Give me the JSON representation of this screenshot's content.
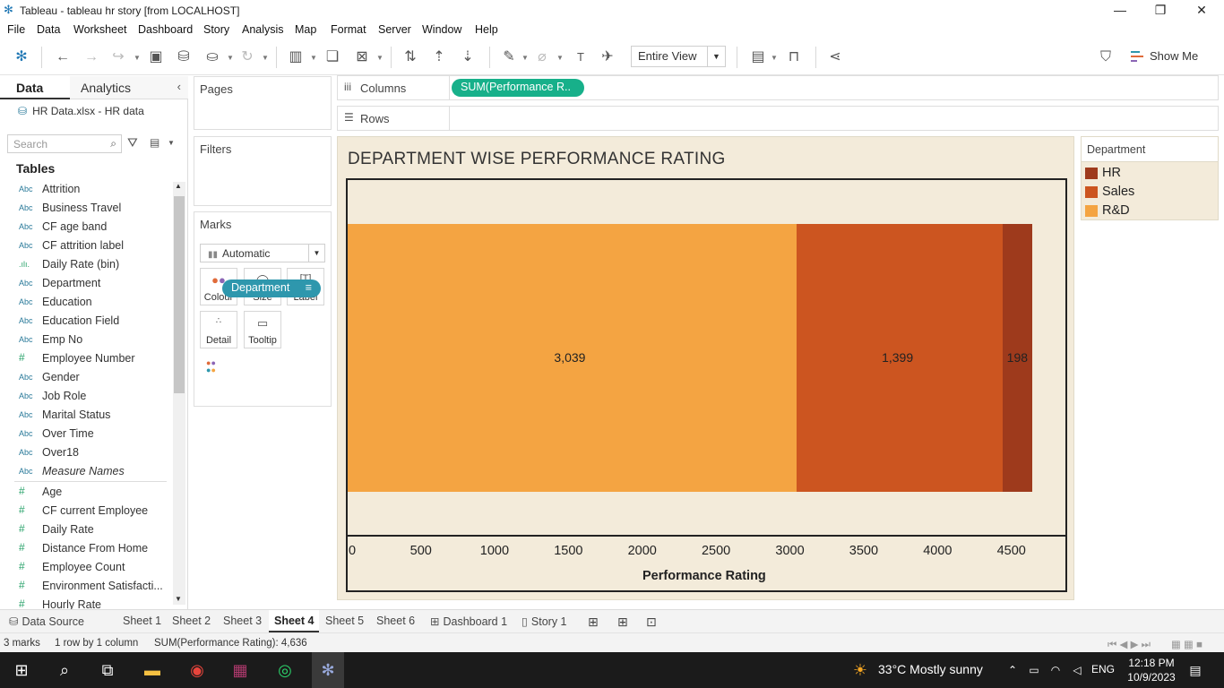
{
  "window": {
    "title": "Tableau - tableau hr story [from LOCALHOST]"
  },
  "menu": [
    "File",
    "Data",
    "Worksheet",
    "Dashboard",
    "Story",
    "Analysis",
    "Map",
    "Format",
    "Server",
    "Window",
    "Help"
  ],
  "toolbar": {
    "fit": "Entire View",
    "show_me": "Show Me"
  },
  "left_panel": {
    "tab_data": "Data",
    "tab_analytics": "Analytics",
    "datasource": "HR Data.xlsx - HR data",
    "search_placeholder": "Search",
    "tables_heading": "Tables",
    "fields": [
      {
        "type": "Abc",
        "name": "Attrition"
      },
      {
        "type": "Abc",
        "name": "Business Travel"
      },
      {
        "type": "Abc",
        "name": "CF age band"
      },
      {
        "type": "Abc",
        "name": "CF attrition label"
      },
      {
        "type": ".ılı.",
        "name": "Daily Rate (bin)"
      },
      {
        "type": "Abc",
        "name": "Department"
      },
      {
        "type": "Abc",
        "name": "Education"
      },
      {
        "type": "Abc",
        "name": "Education Field"
      },
      {
        "type": "Abc",
        "name": "Emp No"
      },
      {
        "type": "#",
        "name": "Employee Number"
      },
      {
        "type": "Abc",
        "name": "Gender"
      },
      {
        "type": "Abc",
        "name": "Job Role"
      },
      {
        "type": "Abc",
        "name": "Marital Status"
      },
      {
        "type": "Abc",
        "name": "Over Time"
      },
      {
        "type": "Abc",
        "name": "Over18"
      },
      {
        "type": "Abc",
        "name": "Measure Names"
      }
    ],
    "measures": [
      {
        "type": "#",
        "name": "Age"
      },
      {
        "type": "#",
        "name": "CF current Employee"
      },
      {
        "type": "#",
        "name": "Daily Rate"
      },
      {
        "type": "#",
        "name": "Distance From Home"
      },
      {
        "type": "#",
        "name": "Employee Count"
      },
      {
        "type": "#",
        "name": "Environment Satisfacti..."
      },
      {
        "type": "#",
        "name": "Hourly Rate"
      }
    ]
  },
  "cards": {
    "pages": "Pages",
    "filters": "Filters",
    "marks": "Marks",
    "mark_type": "Automatic",
    "buttons": [
      "Colour",
      "Size",
      "Label",
      "Detail",
      "Tooltip"
    ],
    "color_pill": "Department"
  },
  "shelves": {
    "columns_label": "Columns",
    "columns_pill": "SUM(Performance R..",
    "rows_label": "Rows"
  },
  "chart_data": {
    "type": "bar",
    "stacked": true,
    "orientation": "horizontal",
    "title": "DEPARTMENT WISE PERFORMANCE RATING",
    "xlabel": "Performance Rating",
    "xlim": [
      0,
      4800
    ],
    "xticks": [
      0,
      500,
      1000,
      1500,
      2000,
      2500,
      3000,
      3500,
      4000,
      4500
    ],
    "series": [
      {
        "name": "R&D",
        "value": 3039,
        "label": "3,039",
        "color": "#f4a442"
      },
      {
        "name": "Sales",
        "value": 1399,
        "label": "1,399",
        "color": "#cc5520"
      },
      {
        "name": "HR",
        "value": 198,
        "label": "198",
        "color": "#9e3a1c"
      }
    ]
  },
  "legend": {
    "title": "Department",
    "items": [
      {
        "name": "HR",
        "color": "#9e3a1c"
      },
      {
        "name": "Sales",
        "color": "#cc5520"
      },
      {
        "name": "R&D",
        "color": "#f4a442"
      }
    ]
  },
  "sheet_tabs": {
    "datasource": "Data Source",
    "sheets": [
      "Sheet 1",
      "Sheet 2",
      "Sheet 3",
      "Sheet 4",
      "Sheet 5",
      "Sheet 6"
    ],
    "active": "Sheet 4",
    "dashboard": "Dashboard 1",
    "story": "Story 1"
  },
  "status": {
    "marks": "3 marks",
    "rows": "1 row  by  1 column",
    "sum": "SUM(Performance Rating): 4,636"
  },
  "taskbar": {
    "weather": "33°C  Mostly sunny",
    "lang": "ENG",
    "time": "12:18 PM",
    "date": "10/9/2023"
  }
}
